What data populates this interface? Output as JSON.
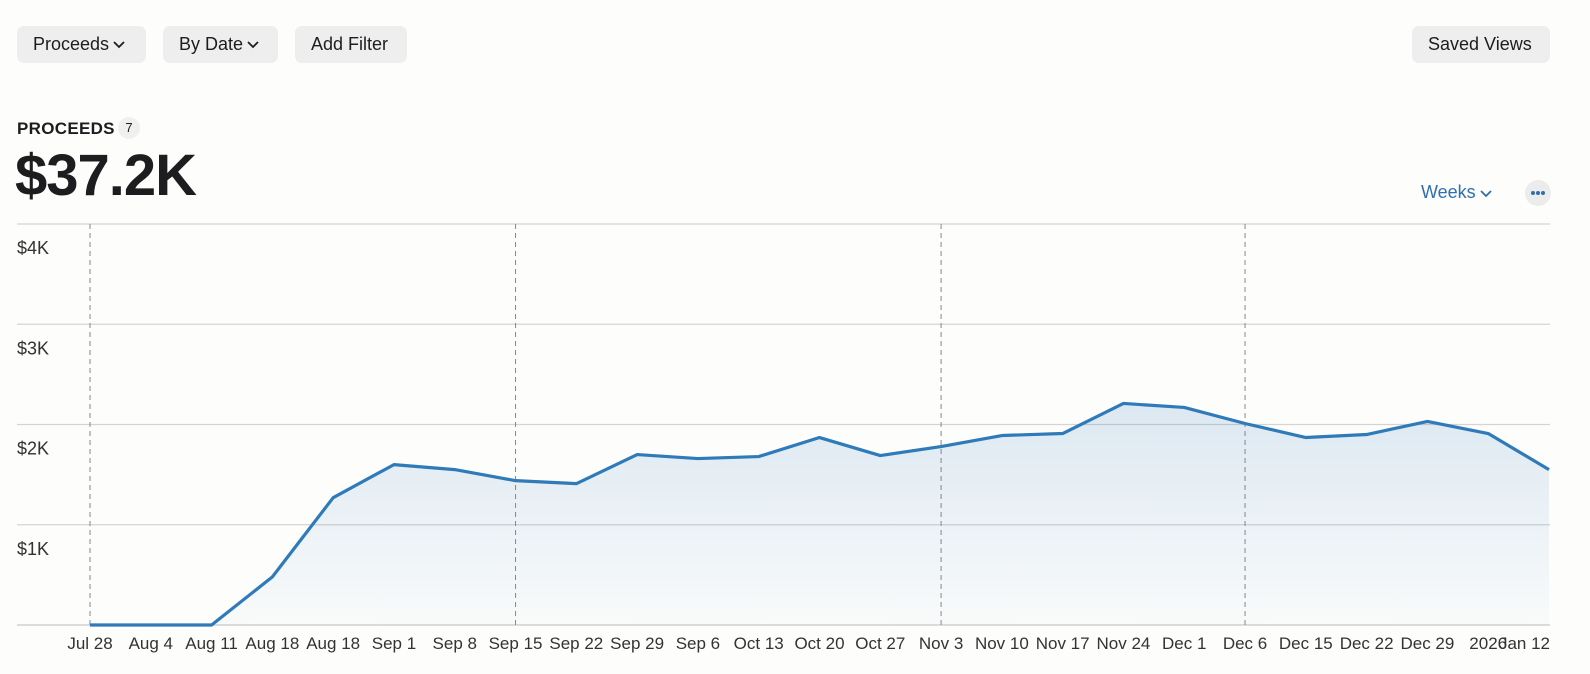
{
  "toolbar": {
    "buttons": [
      "Proceeds",
      "By Date",
      "Add Filter"
    ],
    "saved_views": "Saved Views"
  },
  "metric": {
    "label": "PROCEEDS",
    "badge": "7",
    "value": "$37.2K"
  },
  "period_menu": "Weeks",
  "chart_data": {
    "type": "line",
    "categories": [
      "Jul 28",
      "Aug 4",
      "Aug 11",
      "Aug 18",
      "Aug 18",
      "Sep 1",
      "Sep 8",
      "Sep 15",
      "Sep 22",
      "Sep 29",
      "Sep 6",
      "Oct 13",
      "Oct 20",
      "Oct 27",
      "Nov 3",
      "Nov 10",
      "Nov 17",
      "Nov 24",
      "Dec 1",
      "Dec 6",
      "Dec 15",
      "Dec 22",
      "Dec 29",
      "2026",
      "Jan 12"
    ],
    "series": [
      {
        "name": "Proceeds",
        "color": "#2f7ab9",
        "values": [
          0,
          0,
          0,
          480,
          1270,
          1600,
          1550,
          1440,
          1410,
          1700,
          1660,
          1680,
          1870,
          1690,
          1780,
          1890,
          1910,
          2210,
          2170,
          2010,
          1870,
          1900,
          2030,
          1910,
          1550
        ]
      }
    ],
    "ylim": [
      0,
      4000
    ],
    "yticks": [
      {
        "value": 1000,
        "label": "$1K"
      },
      {
        "value": 2000,
        "label": "$2K"
      },
      {
        "value": 3000,
        "label": "$3K"
      },
      {
        "value": 4000,
        "label": "$4K"
      }
    ],
    "grid": true,
    "marker_indices": [
      0,
      7,
      14,
      19
    ]
  }
}
